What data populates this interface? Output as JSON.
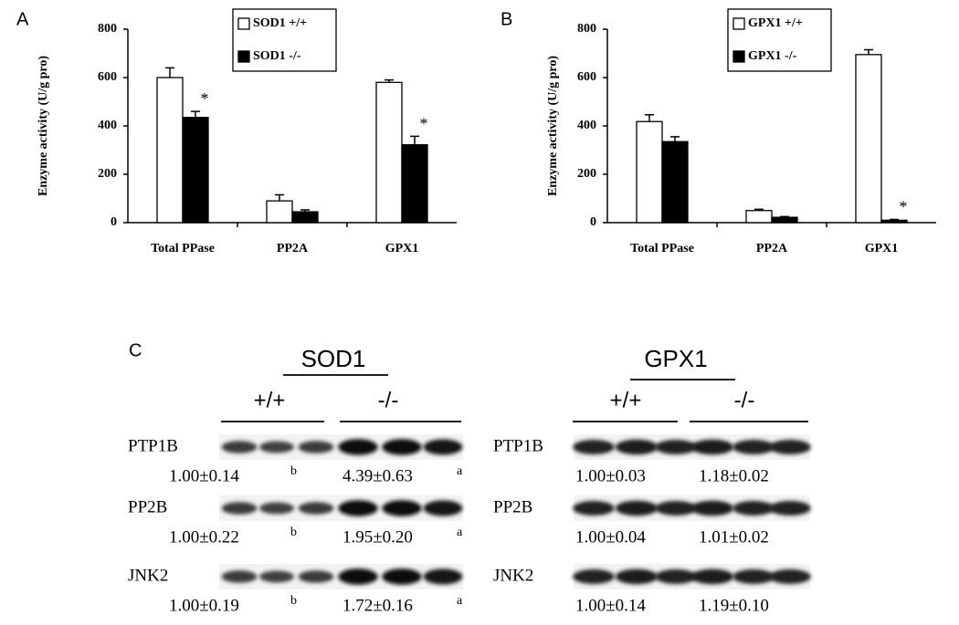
{
  "chart_data": [
    {
      "type": "bar",
      "panel": "A",
      "ylabel": "Enzyme activity (U/g pro)",
      "categories": [
        "Total PPase",
        "PP2A",
        "GPX1"
      ],
      "series": [
        {
          "name": "SOD1 +/+",
          "color": "#ffffff",
          "values": [
            600,
            90,
            580
          ],
          "errors": [
            40,
            25,
            10
          ]
        },
        {
          "name": "SOD1 -/-",
          "color": "#000000",
          "values": [
            435,
            45,
            322
          ],
          "errors": [
            25,
            8,
            35
          ]
        }
      ],
      "annotations": [
        {
          "text": "*",
          "category": "Total PPase",
          "series": "SOD1 -/-"
        },
        {
          "text": "*",
          "category": "GPX1",
          "series": "SOD1 -/-"
        }
      ],
      "ylim": [
        0,
        800
      ],
      "yticks": [
        0,
        200,
        400,
        600,
        800
      ],
      "grid": false
    },
    {
      "type": "bar",
      "panel": "B",
      "ylabel": "Enzyme activity (U/g pro)",
      "categories": [
        "Total PPase",
        "PP2A",
        "GPX1"
      ],
      "series": [
        {
          "name": "GPX1 +/+",
          "color": "#ffffff",
          "values": [
            418,
            50,
            695
          ],
          "errors": [
            28,
            5,
            20
          ]
        },
        {
          "name": "GPX1 -/-",
          "color": "#000000",
          "values": [
            335,
            22,
            10
          ],
          "errors": [
            20,
            3,
            3
          ]
        }
      ],
      "annotations": [
        {
          "text": "*",
          "category": "GPX1",
          "series": "GPX1 -/-"
        }
      ],
      "ylim": [
        0,
        800
      ],
      "yticks": [
        0,
        200,
        400,
        600,
        800
      ],
      "grid": false
    }
  ],
  "blots": {
    "panel": "C",
    "groups": [
      {
        "title": "SOD1",
        "genotypes": [
          "+/+",
          "-/-"
        ],
        "rows": [
          {
            "protein": "PTP1B",
            "values": [
              "1.00±0.14",
              "4.39±0.63"
            ],
            "superscripts": [
              "b",
              "a"
            ]
          },
          {
            "protein": "PP2B",
            "values": [
              "1.00±0.22",
              "1.95±0.20"
            ],
            "superscripts": [
              "b",
              "a"
            ]
          },
          {
            "protein": "JNK2",
            "values": [
              "1.00±0.19",
              "1.72±0.16"
            ],
            "superscripts": [
              "b",
              "a"
            ]
          }
        ]
      },
      {
        "title": "GPX1",
        "genotypes": [
          "+/+",
          "-/-"
        ],
        "rows": [
          {
            "protein": "PTP1B",
            "values": [
              "1.00±0.03",
              "1.18±0.02"
            ]
          },
          {
            "protein": "PP2B",
            "values": [
              "1.00±0.04",
              "1.01±0.02"
            ]
          },
          {
            "protein": "JNK2",
            "values": [
              "1.00±0.14",
              "1.19±0.10"
            ]
          }
        ]
      }
    ]
  }
}
